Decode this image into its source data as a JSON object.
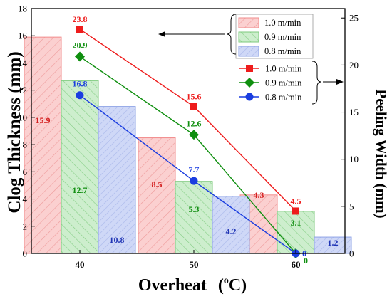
{
  "chart_data": {
    "type": "bar+line",
    "x_axis": {
      "title_main": "Overheat",
      "title_unit_open": "(",
      "title_unit_sup": "o",
      "title_unit_rest": "C)",
      "categories": [
        "40",
        "50",
        "60"
      ]
    },
    "y_left": {
      "title": "Clog Thickness (mm)",
      "ylim": [
        0,
        18
      ],
      "ticks": [
        "0",
        "2",
        "4",
        "6",
        "8",
        "10",
        "12",
        "14",
        "16",
        "18"
      ]
    },
    "y_right": {
      "title": "Peeling Width (mm)",
      "ylim": [
        0,
        26
      ],
      "ticks": [
        "0",
        "5",
        "10",
        "15",
        "20",
        "25"
      ]
    },
    "bar_series": [
      {
        "name": "1.0 m/min",
        "color": "#f28b8b",
        "fill": "#fbd0d0",
        "label_color": "#d42020",
        "values": [
          15.9,
          8.5,
          4.3
        ],
        "labels": [
          "15.9",
          "8.5",
          "4.3"
        ]
      },
      {
        "name": "0.9 m/min",
        "color": "#7cc97c",
        "fill": "#cdeecd",
        "label_color": "#159015",
        "values": [
          12.7,
          5.3,
          3.1
        ],
        "labels": [
          "12.7",
          "5.3",
          "3.1"
        ]
      },
      {
        "name": "0.8 m/min",
        "color": "#8ea3e6",
        "fill": "#cfd8f7",
        "label_color": "#2035b5",
        "values": [
          10.8,
          4.2,
          1.2
        ],
        "labels": [
          "10.8",
          "4.2",
          "1.2"
        ]
      }
    ],
    "line_series": [
      {
        "name": "1.0 m/min",
        "color": "#ee1c1c",
        "marker": "square",
        "values": [
          23.8,
          15.6,
          4.5
        ],
        "labels": [
          "23.8",
          "15.6",
          "4.5"
        ]
      },
      {
        "name": "0.9 m/min",
        "color": "#0f8f0f",
        "marker": "diamond",
        "values": [
          20.9,
          12.6,
          0
        ],
        "labels": [
          "20.9",
          "12.6",
          "0"
        ]
      },
      {
        "name": "0.8 m/min",
        "color": "#1a3de0",
        "marker": "circle",
        "values": [
          16.8,
          7.7,
          0
        ],
        "labels": [
          "16.8",
          "7.7",
          "0"
        ]
      }
    ],
    "grid": false,
    "legend_bars_placement": "top-right",
    "legend_lines_placement": "right"
  }
}
